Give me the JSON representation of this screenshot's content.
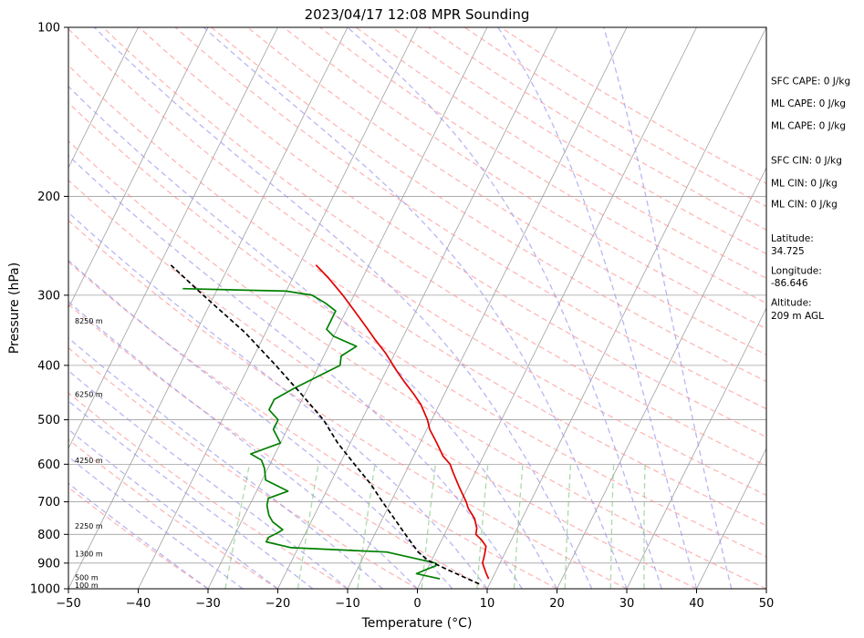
{
  "chart_data": {
    "type": "line",
    "title": "2023/04/17 12:08 MPR Sounding",
    "xlabel": "Temperature (°C)",
    "ylabel": "Pressure (hPa)",
    "xlim": [
      -50,
      50
    ],
    "ylim": [
      1000,
      100
    ],
    "y_scale": "log",
    "skew": true,
    "grid": true,
    "x_ticks": [
      "−50",
      "−40",
      "−30",
      "−20",
      "−10",
      "0",
      "10",
      "20",
      "30",
      "40",
      "50"
    ],
    "x_tick_values": [
      -50,
      -40,
      -30,
      -20,
      -10,
      0,
      10,
      20,
      30,
      40,
      50
    ],
    "y_ticks": [
      "100",
      "200",
      "300",
      "400",
      "500",
      "600",
      "700",
      "800",
      "900",
      "1000"
    ],
    "y_tick_values": [
      100,
      200,
      300,
      400,
      500,
      600,
      700,
      800,
      900,
      1000
    ],
    "series": [
      {
        "role": "temperature",
        "color": "#e00000",
        "points": [
          [
            960,
            9.5
          ],
          [
            940,
            8.8
          ],
          [
            900,
            7.5
          ],
          [
            870,
            7.2
          ],
          [
            840,
            6.8
          ],
          [
            820,
            5.8
          ],
          [
            800,
            4.5
          ],
          [
            780,
            4.2
          ],
          [
            750,
            3.2
          ],
          [
            720,
            1.6
          ],
          [
            700,
            0.8
          ],
          [
            660,
            -1.2
          ],
          [
            620,
            -3.2
          ],
          [
            600,
            -4.2
          ],
          [
            580,
            -5.8
          ],
          [
            550,
            -7.6
          ],
          [
            520,
            -9.6
          ],
          [
            500,
            -10.6
          ],
          [
            470,
            -12.6
          ],
          [
            450,
            -14.4
          ],
          [
            430,
            -16.4
          ],
          [
            410,
            -18.4
          ],
          [
            380,
            -21.4
          ],
          [
            360,
            -23.8
          ],
          [
            340,
            -26.2
          ],
          [
            320,
            -28.8
          ],
          [
            300,
            -31.6
          ],
          [
            280,
            -34.8
          ],
          [
            265,
            -37.6
          ]
        ]
      },
      {
        "role": "dewpoint",
        "color": "#008000",
        "points": [
          [
            960,
            2.5
          ],
          [
            940,
            -1.2
          ],
          [
            920,
            0.2
          ],
          [
            910,
            1.0
          ],
          [
            900,
            0.8
          ],
          [
            860,
            -7.0
          ],
          [
            845,
            -21.0
          ],
          [
            825,
            -25.0
          ],
          [
            810,
            -25.0
          ],
          [
            795,
            -24.0
          ],
          [
            785,
            -23.5
          ],
          [
            760,
            -25.5
          ],
          [
            740,
            -26.5
          ],
          [
            710,
            -27.5
          ],
          [
            690,
            -27.8
          ],
          [
            670,
            -25.5
          ],
          [
            640,
            -29.5
          ],
          [
            610,
            -30.5
          ],
          [
            590,
            -31.5
          ],
          [
            575,
            -33.5
          ],
          [
            550,
            -30.0
          ],
          [
            520,
            -32.0
          ],
          [
            500,
            -32.0
          ],
          [
            480,
            -34.0
          ],
          [
            460,
            -34.0
          ],
          [
            440,
            -32.0
          ],
          [
            400,
            -27.0
          ],
          [
            385,
            -27.5
          ],
          [
            370,
            -26.0
          ],
          [
            355,
            -30.0
          ],
          [
            345,
            -31.5
          ],
          [
            335,
            -31.5
          ],
          [
            320,
            -31.5
          ],
          [
            310,
            -33.5
          ],
          [
            300,
            -36.0
          ],
          [
            295,
            -40.0
          ],
          [
            292,
            -55.0
          ]
        ]
      },
      {
        "role": "parcel",
        "color": "#000000",
        "style": "dashed",
        "points": [
          [
            980,
            8.5
          ],
          [
            960,
            6.5
          ],
          [
            920,
            2.5
          ],
          [
            890,
            -0.5
          ],
          [
            860,
            -2.5
          ],
          [
            800,
            -5.6
          ],
          [
            750,
            -8.3
          ],
          [
            700,
            -11.2
          ],
          [
            650,
            -14.2
          ],
          [
            600,
            -17.9
          ],
          [
            550,
            -21.8
          ],
          [
            500,
            -25.5
          ],
          [
            450,
            -30.5
          ],
          [
            400,
            -36.2
          ],
          [
            350,
            -42.9
          ],
          [
            300,
            -51.6
          ],
          [
            265,
            -58.4
          ]
        ]
      }
    ],
    "height_labels": [
      {
        "text": "100 m",
        "p": 985
      },
      {
        "text": "500 m",
        "p": 955
      },
      {
        "text": "1300 m",
        "p": 866
      },
      {
        "text": "2250 m",
        "p": 773
      },
      {
        "text": "4250 m",
        "p": 590
      },
      {
        "text": "6250 m",
        "p": 450
      },
      {
        "text": "8250 m",
        "p": 333
      }
    ]
  },
  "annotations": [
    {
      "text": "SFC CAPE: 0 J/kg",
      "p": 125
    },
    {
      "text": "ML CAPE: 0 J/kg",
      "p": 137
    },
    {
      "text": "ML CAPE: 0 J/kg",
      "p": 150
    },
    {
      "text": "SFC CIN: 0 J/kg",
      "p": 173
    },
    {
      "text": "ML CIN: 0 J/kg",
      "p": 190
    },
    {
      "text": "ML CIN: 0 J/kg",
      "p": 207
    },
    {
      "text": "Latitude:",
      "p": 238
    },
    {
      "text": "34.725",
      "p": 251
    },
    {
      "text": "Longitude:",
      "p": 272
    },
    {
      "text": "-86.646",
      "p": 286
    },
    {
      "text": "Altitude:",
      "p": 310
    },
    {
      "text": "209 m AGL",
      "p": 327
    }
  ],
  "colors": {
    "isotherm": "#a0a0a0",
    "dry_adiabat": "#ff9090",
    "moist_adiabat": "#9999ee",
    "mixing_ratio": "#66bb66"
  }
}
